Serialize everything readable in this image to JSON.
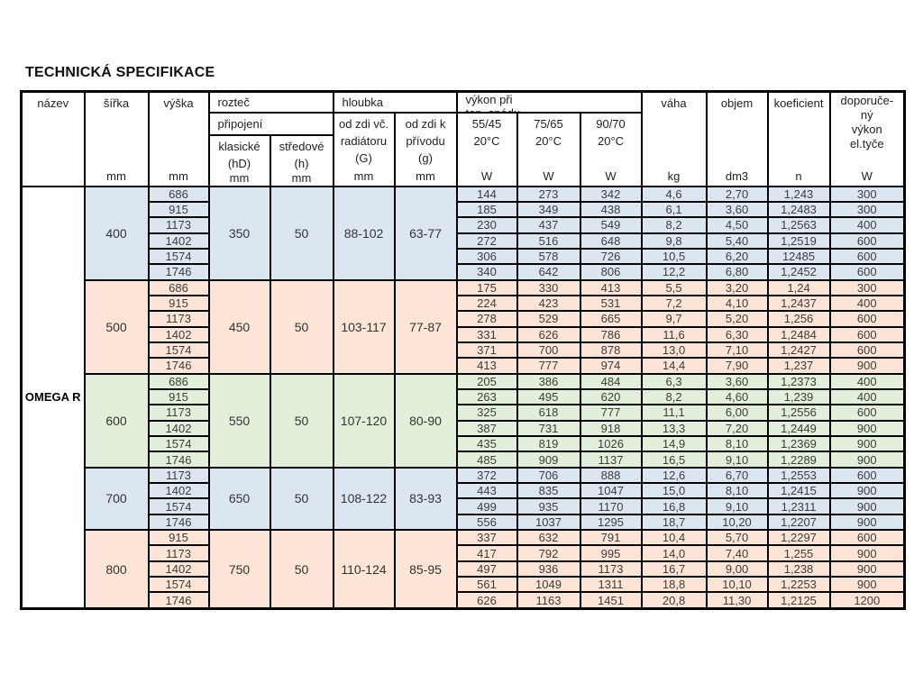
{
  "page_title": "TECHNICKÁ SPECIFIKACE",
  "product": "OMEGA R",
  "colors": {
    "blue": "#dce6f1",
    "peach": "#fce4d6",
    "green": "#e2efda",
    "border": "#000000"
  },
  "header": {
    "nazev": "název",
    "sirka": "šířka",
    "sirka_unit": "mm",
    "vyska": "výška",
    "vyska_unit": "mm",
    "roztec": "rozteč",
    "pripojeni": "připojení",
    "klasicke": "klasické\n(hD)",
    "klasicke_unit": "mm",
    "stredove": "středové\n(h)",
    "stredove_unit": "mm",
    "hloubka": "hloubka",
    "od_zdi_vc": "od zdi vč.\nradiátoru\n(G)",
    "od_zdi_vc_unit": "mm",
    "od_zdi_k": "od zdi k\npřívodu\n(g)",
    "od_zdi_k_unit": "mm",
    "vykon": "výkon při\ntop. spádu",
    "t55_45": "55/45\n20°C",
    "t55_45_unit": "W",
    "t75_65": "75/65\n20°C",
    "t75_65_unit": "W",
    "t90_70": "90/70\n20°C",
    "t90_70_unit": "W",
    "vaha": "váha",
    "vaha_unit": "kg",
    "objem": "objem",
    "objem_unit": "dm3",
    "koeficient": "koeficient",
    "koeficient_unit": "n",
    "doporuceny": "doporuče-\nný\nvýkon\nel.tyče",
    "doporuceny_unit": "W"
  },
  "row_columns": [
    "vyska",
    "p55_45",
    "p75_65",
    "p90_70",
    "vaha_kg",
    "objem_dm3",
    "koeficient_n",
    "el_tyce_w"
  ],
  "groups": [
    {
      "sirka": "400",
      "roztec_klasicke": "350",
      "roztec_stredove": "50",
      "hloubka_od_zdi_vc": "88-102",
      "hloubka_od_zdi_k": "63-77",
      "color": "blue",
      "rows": [
        [
          "686",
          "144",
          "273",
          "342",
          "4,6",
          "2,70",
          "1,243",
          "300"
        ],
        [
          "915",
          "185",
          "349",
          "438",
          "6,1",
          "3,60",
          "1,2483",
          "300"
        ],
        [
          "1173",
          "230",
          "437",
          "549",
          "8,2",
          "4,50",
          "1,2563",
          "400"
        ],
        [
          "1402",
          "272",
          "516",
          "648",
          "9,8",
          "5,40",
          "1,2519",
          "600"
        ],
        [
          "1574",
          "306",
          "578",
          "726",
          "10,5",
          "6,20",
          "12485",
          "600"
        ],
        [
          "1746",
          "340",
          "642",
          "806",
          "12,2",
          "6,80",
          "1,2452",
          "600"
        ]
      ]
    },
    {
      "sirka": "500",
      "roztec_klasicke": "450",
      "roztec_stredove": "50",
      "hloubka_od_zdi_vc": "103-117",
      "hloubka_od_zdi_k": "77-87",
      "color": "peach",
      "rows": [
        [
          "686",
          "175",
          "330",
          "413",
          "5,5",
          "3,20",
          "1,24",
          "300"
        ],
        [
          "915",
          "224",
          "423",
          "531",
          "7,2",
          "4,10",
          "1,2437",
          "400"
        ],
        [
          "1173",
          "278",
          "529",
          "665",
          "9,7",
          "5,20",
          "1,256",
          "600"
        ],
        [
          "1402",
          "331",
          "626",
          "786",
          "11,6",
          "6,30",
          "1,2484",
          "600"
        ],
        [
          "1574",
          "371",
          "700",
          "878",
          "13,0",
          "7,10",
          "1,2427",
          "600"
        ],
        [
          "1746",
          "413",
          "777",
          "974",
          "14,4",
          "7,90",
          "1,237",
          "900"
        ]
      ]
    },
    {
      "sirka": "600",
      "roztec_klasicke": "550",
      "roztec_stredove": "50",
      "hloubka_od_zdi_vc": "107-120",
      "hloubka_od_zdi_k": "80-90",
      "color": "green",
      "rows": [
        [
          "686",
          "205",
          "386",
          "484",
          "6,3",
          "3,60",
          "1,2373",
          "400"
        ],
        [
          "915",
          "263",
          "495",
          "620",
          "8,2",
          "4,60",
          "1,239",
          "400"
        ],
        [
          "1173",
          "325",
          "618",
          "777",
          "11,1",
          "6,00",
          "1,2556",
          "600"
        ],
        [
          "1402",
          "387",
          "731",
          "918",
          "13,3",
          "7,20",
          "1,2449",
          "900"
        ],
        [
          "1574",
          "435",
          "819",
          "1026",
          "14,9",
          "8,10",
          "1,2369",
          "900"
        ],
        [
          "1746",
          "485",
          "909",
          "1137",
          "16,5",
          "9,10",
          "1,2289",
          "900"
        ]
      ]
    },
    {
      "sirka": "700",
      "roztec_klasicke": "650",
      "roztec_stredove": "50",
      "hloubka_od_zdi_vc": "108-122",
      "hloubka_od_zdi_k": "83-93",
      "color": "blue",
      "rows": [
        [
          "1173",
          "372",
          "706",
          "888",
          "12,6",
          "6,70",
          "1,2553",
          "600"
        ],
        [
          "1402",
          "443",
          "835",
          "1047",
          "15,0",
          "8,10",
          "1,2415",
          "900"
        ],
        [
          "1574",
          "499",
          "935",
          "1170",
          "16,8",
          "9,10",
          "1,2311",
          "900"
        ],
        [
          "1746",
          "556",
          "1037",
          "1295",
          "18,7",
          "10,20",
          "1,2207",
          "900"
        ]
      ]
    },
    {
      "sirka": "800",
      "roztec_klasicke": "750",
      "roztec_stredove": "50",
      "hloubka_od_zdi_vc": "110-124",
      "hloubka_od_zdi_k": "85-95",
      "color": "peach",
      "rows": [
        [
          "915",
          "337",
          "632",
          "791",
          "10,4",
          "5,70",
          "1,2297",
          "600"
        ],
        [
          "1173",
          "417",
          "792",
          "995",
          "14,0",
          "7,40",
          "1,255",
          "900"
        ],
        [
          "1402",
          "497",
          "936",
          "1173",
          "16,7",
          "9,00",
          "1,238",
          "900"
        ],
        [
          "1574",
          "561",
          "1049",
          "1311",
          "18,8",
          "10,10",
          "1,2253",
          "900"
        ],
        [
          "1746",
          "626",
          "1163",
          "1451",
          "20,8",
          "11,30",
          "1,2125",
          "1200"
        ]
      ]
    }
  ]
}
